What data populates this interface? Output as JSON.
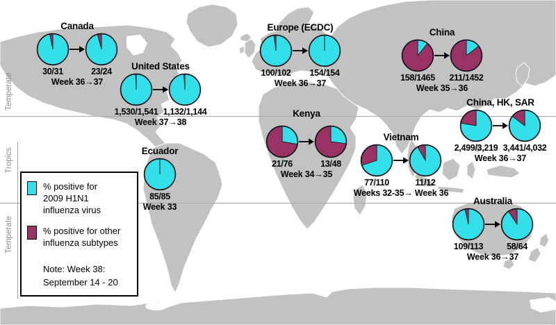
{
  "zones": {
    "labels": [
      "Temperate",
      "Tropics",
      "Temperate"
    ]
  },
  "legend": {
    "items": [
      {
        "swatch_color": "#33E0EA",
        "lines": [
          "% positive for",
          "2009 H1N1",
          "influenza virus"
        ]
      },
      {
        "swatch_color": "#993366",
        "lines": [
          "% positive for other",
          "influenza subtypes"
        ]
      }
    ],
    "note_lines": [
      "Note: Week 38:",
      "September 14 - 20"
    ]
  },
  "colors": {
    "h1n1_positive": "#33E0EA",
    "other_subtypes": "#993366",
    "land": "#C2C2C2",
    "ocean": "#FFFFFF",
    "zone_line": "#A6A6A6",
    "zone_label_text": "#8C8C8C"
  },
  "chart_data": {
    "type": "pie",
    "legend": [
      "% positive for 2009 H1N1 influenza virus",
      "% positive for other influenza subtypes"
    ],
    "note": "Note: Week 38: September 14 - 20",
    "regions": [
      {
        "name": "Canada",
        "week_label": "Week 36→37",
        "pies": [
          {
            "label": "30/31",
            "h1n1": 30,
            "total": 31
          },
          {
            "label": "23/24",
            "h1n1": 23,
            "total": 24
          }
        ]
      },
      {
        "name": "United States",
        "week_label": "Week 37→38",
        "pies": [
          {
            "label": "1,530/1,541",
            "h1n1": 1530,
            "total": 1541
          },
          {
            "label": "1,132/1,144",
            "h1n1": 1132,
            "total": 1144
          }
        ]
      },
      {
        "name": "Ecuador",
        "week_label": "Week 33",
        "pies": [
          {
            "label": "85/85",
            "h1n1": 85,
            "total": 85
          }
        ]
      },
      {
        "name": "Europe (ECDC)",
        "week_label": "Week 36→37",
        "pies": [
          {
            "label": "100/102",
            "h1n1": 100,
            "total": 102
          },
          {
            "label": "154/154",
            "h1n1": 154,
            "total": 154
          }
        ]
      },
      {
        "name": "China",
        "week_label": "Week 35→36",
        "pies": [
          {
            "label": "158/1465",
            "h1n1": 158,
            "total": 1465
          },
          {
            "label": "211/1452",
            "h1n1": 211,
            "total": 1452
          }
        ]
      },
      {
        "name": "Kenya",
        "week_label": "Week 34→35",
        "pies": [
          {
            "label": "21/76",
            "h1n1": 21,
            "total": 76
          },
          {
            "label": "13/48",
            "h1n1": 13,
            "total": 48
          }
        ]
      },
      {
        "name": "China, HK, SAR",
        "week_label": "Week 36→37",
        "pies": [
          {
            "label": "2,499/3,219",
            "h1n1": 2499,
            "total": 3219
          },
          {
            "label": "3,441/4,032",
            "h1n1": 3441,
            "total": 4032
          }
        ]
      },
      {
        "name": "Vietnam",
        "week_label": "Weeks 32-35→ Week 36",
        "pies": [
          {
            "label": "77/110",
            "h1n1": 77,
            "total": 110
          },
          {
            "label": "11/12",
            "h1n1": 11,
            "total": 12
          }
        ]
      },
      {
        "name": "Australia",
        "week_label": "Week 36→37",
        "pies": [
          {
            "label": "109/113",
            "h1n1": 109,
            "total": 113
          },
          {
            "label": "58/64",
            "h1n1": 58,
            "total": 64
          }
        ]
      }
    ]
  }
}
